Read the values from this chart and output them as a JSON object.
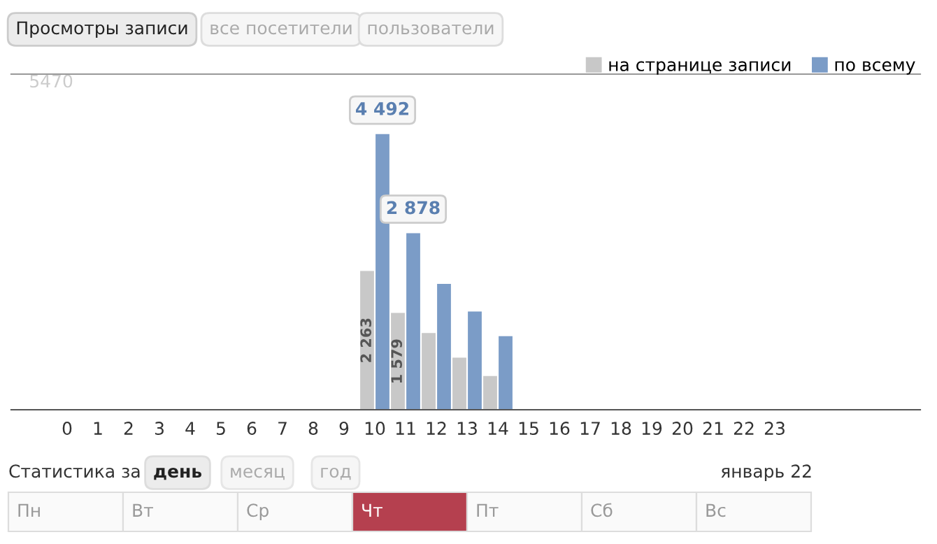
{
  "chart_data": {
    "type": "bar",
    "categories": [
      "0",
      "1",
      "2",
      "3",
      "4",
      "5",
      "6",
      "7",
      "8",
      "9",
      "10",
      "11",
      "12",
      "13",
      "14",
      "15",
      "16",
      "17",
      "18",
      "19",
      "20",
      "21",
      "22",
      "23"
    ],
    "series": [
      {
        "name": "на странице записи",
        "color": "#c8c8c8",
        "values": [
          0,
          0,
          0,
          0,
          0,
          0,
          0,
          0,
          0,
          0,
          2263,
          1579,
          1250,
          850,
          550,
          0,
          0,
          0,
          0,
          0,
          0,
          0,
          0,
          0
        ],
        "value_labels": [
          null,
          null,
          null,
          null,
          null,
          null,
          null,
          null,
          null,
          null,
          "2 263",
          "1 579",
          null,
          null,
          null,
          null,
          null,
          null,
          null,
          null,
          null,
          null,
          null,
          null
        ]
      },
      {
        "name": "по всему",
        "color": "#7b9cc7",
        "values": [
          0,
          0,
          0,
          0,
          0,
          0,
          0,
          0,
          0,
          0,
          4492,
          2878,
          2050,
          1600,
          1200,
          0,
          0,
          0,
          0,
          0,
          0,
          0,
          0,
          0
        ],
        "value_labels": [
          null,
          null,
          null,
          null,
          null,
          null,
          null,
          null,
          null,
          null,
          "4 492",
          "2 878",
          null,
          null,
          null,
          null,
          null,
          null,
          null,
          null,
          null,
          null,
          null,
          null
        ]
      }
    ],
    "ylim": [
      0,
      5470
    ],
    "yticks": [
      5470
    ],
    "grid": false,
    "legend": "top right",
    "annotations": [
      "Просмотры записи",
      "все посетители",
      "пользователи",
      "Статистика за",
      "день",
      "месяц",
      "год",
      "январь 22",
      "Пн",
      "Вт",
      "Ср",
      "Чт",
      "Пт",
      "Сб",
      "Вс"
    ]
  }
}
